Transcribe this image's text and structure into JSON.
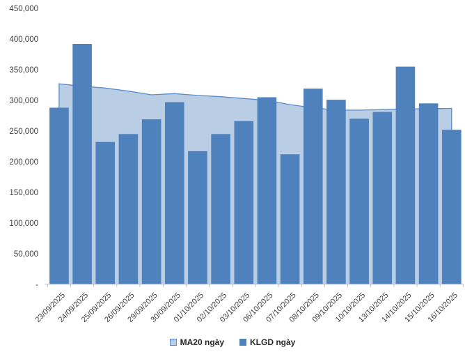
{
  "chart_data": {
    "type": "combo",
    "title": "",
    "xlabel": "",
    "ylabel": "",
    "categories": [
      "23/09/2025",
      "24/09/2025",
      "25/09/2025",
      "26/09/2025",
      "29/09/2025",
      "30/09/2025",
      "01/10/2025",
      "02/10/2025",
      "03/10/2025",
      "06/10/2025",
      "07/10/2025",
      "08/10/2025",
      "09/10/2025",
      "10/10/2025",
      "13/10/2025",
      "14/10/2025",
      "15/10/2025",
      "16/10/2025"
    ],
    "series": [
      {
        "name": "MA20 ngày",
        "type": "area",
        "values": [
          327000,
          323000,
          320000,
          315000,
          309000,
          311000,
          308000,
          306000,
          303000,
          300000,
          293000,
          288000,
          284000,
          284000,
          285000,
          286000,
          286000,
          287000
        ]
      },
      {
        "name": "KLGD ngày",
        "type": "bar",
        "values": [
          288000,
          392000,
          232000,
          245000,
          269000,
          297000,
          217000,
          245000,
          266000,
          305000,
          212000,
          319000,
          301000,
          270000,
          281000,
          355000,
          295000,
          252000
        ]
      }
    ],
    "ylim": [
      0,
      450000
    ],
    "ytick_step": 50000,
    "ytick_labels": [
      "-",
      "50,000",
      "100,000",
      "150,000",
      "200,000",
      "250,000",
      "300,000",
      "350,000",
      "400,000",
      "450,000"
    ],
    "grid": false,
    "legend_position": "bottom",
    "colors": {
      "bar_fill": "#4F81BD",
      "area_fill": "#B9CDE5",
      "area_line": "#5B8BC9",
      "axis_line": "#BFBFBF",
      "tick_text": "#3F3F3F",
      "legend_text": "#262626"
    }
  }
}
